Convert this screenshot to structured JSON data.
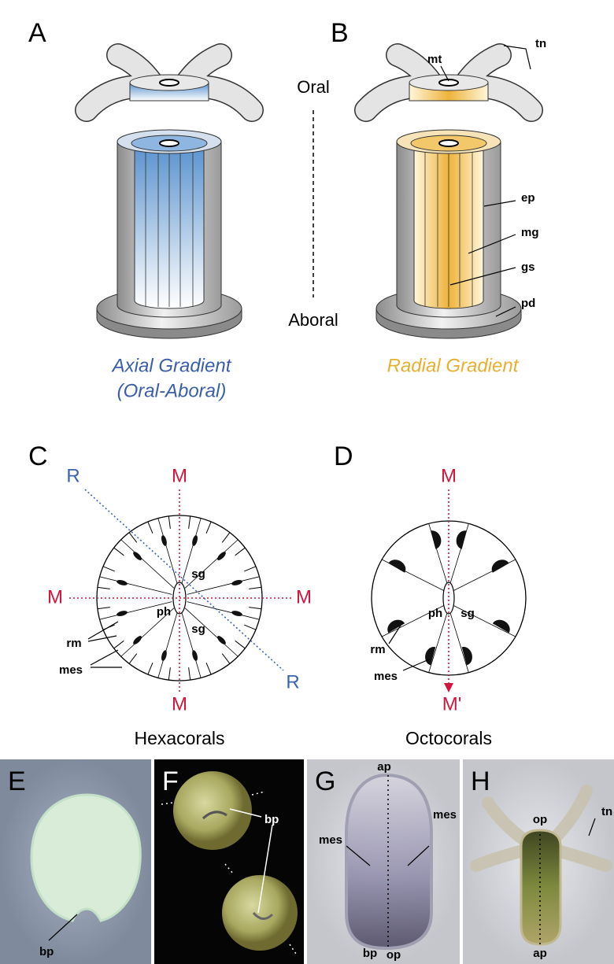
{
  "panel_a": {
    "letter": "A",
    "caption_line1": "Axial Gradient",
    "caption_line2": "(Oral-Aboral)"
  },
  "axis": {
    "top": "Oral",
    "bottom": "Aboral"
  },
  "panel_b": {
    "letter": "B",
    "labels": [
      "mt",
      "tn",
      "ep",
      "mg",
      "gs",
      "pd"
    ],
    "caption": "Radial Gradient"
  },
  "panel_c": {
    "letter": "C",
    "axis_labels": [
      "M",
      "M",
      "M",
      "M",
      "R",
      "R"
    ],
    "labels": [
      "sg",
      "ph",
      "sg",
      "rm",
      "mes"
    ],
    "caption": "Hexacorals"
  },
  "panel_d": {
    "letter": "D",
    "axis_labels": [
      "M",
      "M'"
    ],
    "labels": [
      "ph",
      "sg",
      "rm",
      "mes"
    ],
    "caption": "Octocorals"
  },
  "photos": [
    {
      "letter": "E",
      "labels": [
        "bp"
      ]
    },
    {
      "letter": "F",
      "labels": [
        "bp"
      ]
    },
    {
      "letter": "G",
      "labels": [
        "ap",
        "mes",
        "mes",
        "bp",
        "op"
      ]
    },
    {
      "letter": "H",
      "labels": [
        "op",
        "tn",
        "ap"
      ]
    }
  ]
}
